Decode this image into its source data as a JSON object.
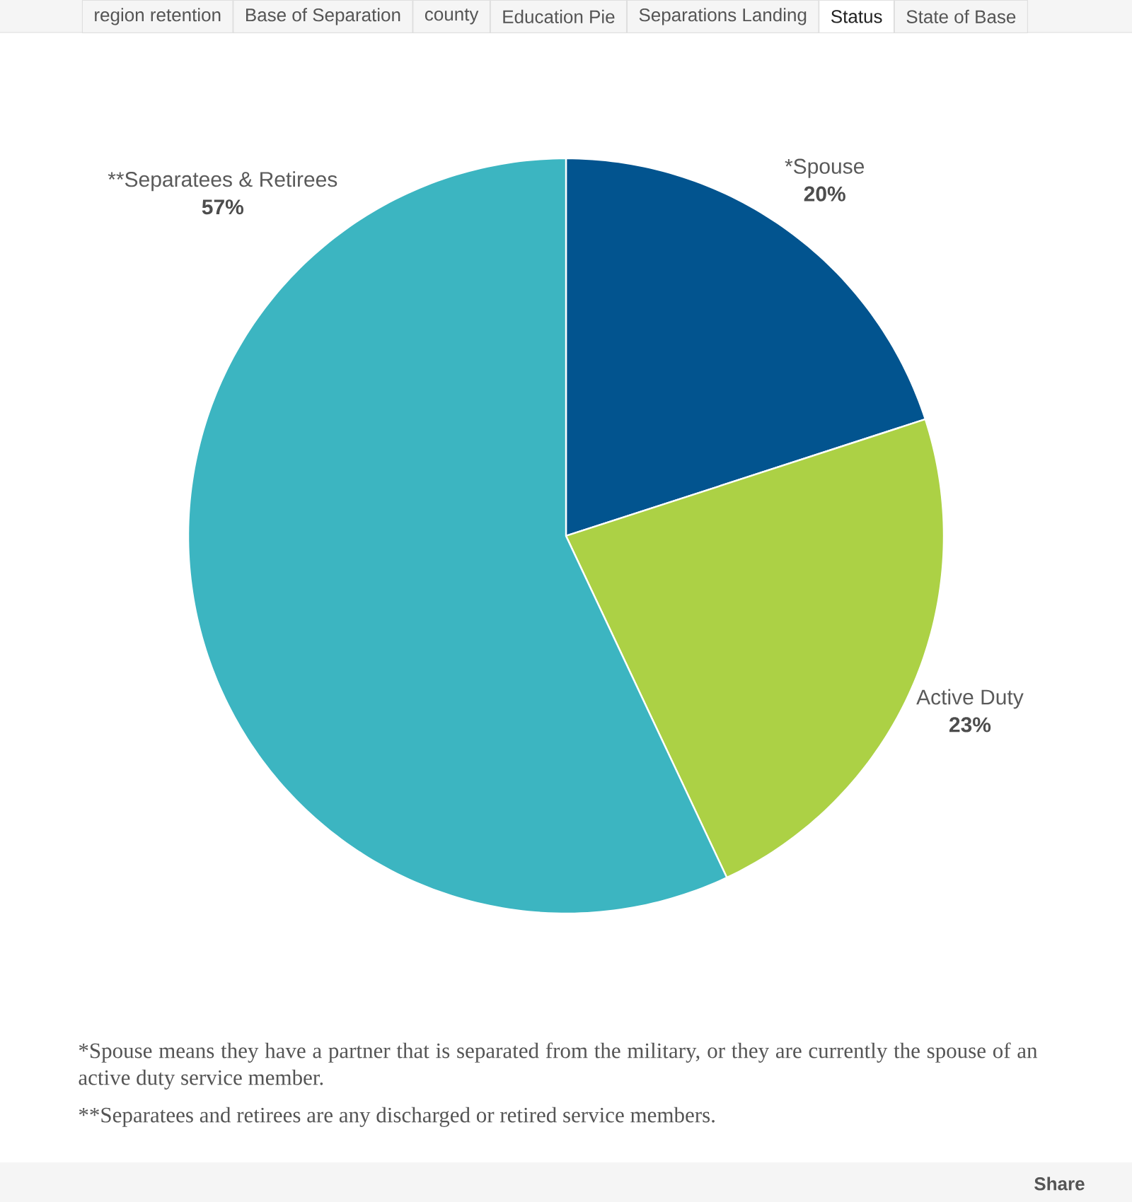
{
  "chart_data": {
    "type": "pie",
    "categories": [
      "*Spouse",
      "Active Duty",
      "**Separatees & Retirees"
    ],
    "values": [
      20,
      23,
      57
    ],
    "colors": [
      "#02548f",
      "#acd145",
      "#3cb5c1"
    ],
    "value_labels": [
      "20%",
      "23%",
      "57%"
    ],
    "annotations": [
      "*Spouse means they have a partner that is separated from the military, or they are currently the spouse of an active duty service member.",
      "**Separatees and retirees are any discharged or retired service members.",
      "region retention",
      "Base of Separation",
      "county",
      "Education Pie",
      "Separations Landing",
      "Status",
      "State of Base",
      "Share"
    ]
  }
}
